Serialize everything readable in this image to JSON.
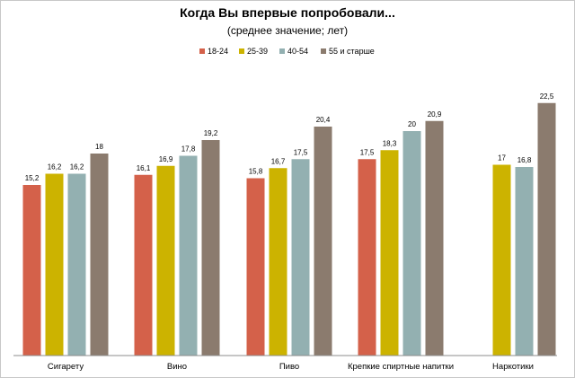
{
  "chart_data": {
    "type": "bar",
    "title": "Когда Вы впервые попробовали...",
    "subtitle": "(среднее значение; лет)",
    "categories": [
      "Сигарету",
      "Вино",
      "Пиво",
      "Крепкие спиртные напитки",
      "Наркотики"
    ],
    "series": [
      {
        "name": "18-24",
        "color": "#d4614a",
        "values": [
          15.2,
          16.1,
          15.8,
          17.5,
          null
        ],
        "labels": [
          "15,2",
          "16,1",
          "15,8",
          "17,5",
          ""
        ]
      },
      {
        "name": "25-39",
        "color": "#ccb300",
        "values": [
          16.2,
          16.9,
          16.7,
          18.3,
          17
        ],
        "labels": [
          "16,2",
          "16,9",
          "16,7",
          "18,3",
          "17"
        ]
      },
      {
        "name": "40-54",
        "color": "#93b0b1",
        "values": [
          16.2,
          17.8,
          17.5,
          20,
          16.8
        ],
        "labels": [
          "16,2",
          "17,8",
          "17,5",
          "20",
          "16,8"
        ]
      },
      {
        "name": "55 и старше",
        "color": "#8b7b6e",
        "values": [
          18,
          19.2,
          20.4,
          20.9,
          22.5
        ],
        "labels": [
          "18",
          "19,2",
          "20,4",
          "20,9",
          "22,5"
        ]
      }
    ],
    "legend_position": "top",
    "grid": false
  }
}
